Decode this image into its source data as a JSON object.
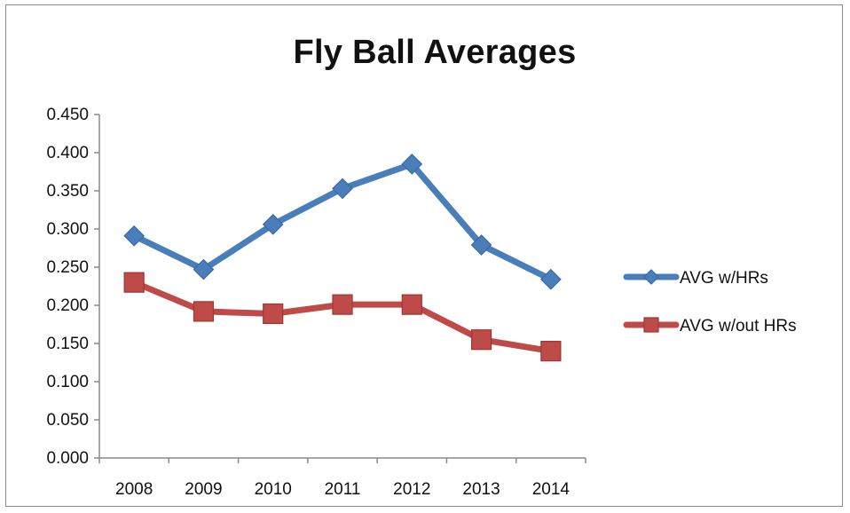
{
  "chart_data": {
    "type": "line",
    "title": "Fly Ball Averages",
    "xlabel": "",
    "ylabel": "",
    "categories": [
      "2008",
      "2009",
      "2010",
      "2011",
      "2012",
      "2013",
      "2014"
    ],
    "ylim": [
      0,
      0.45
    ],
    "yticks": [
      "0.000",
      "0.050",
      "0.100",
      "0.150",
      "0.200",
      "0.250",
      "0.300",
      "0.350",
      "0.400",
      "0.450"
    ],
    "grid": false,
    "legend_position": "right",
    "series": [
      {
        "name": "AVG w/HRs",
        "values": [
          0.291,
          0.247,
          0.306,
          0.353,
          0.385,
          0.279,
          0.234
        ],
        "color": "#4a7ebb",
        "marker": "diamond"
      },
      {
        "name": "AVG w/out HRs",
        "values": [
          0.23,
          0.192,
          0.189,
          0.201,
          0.201,
          0.155,
          0.14
        ],
        "color": "#be4b48",
        "marker": "square"
      }
    ]
  }
}
